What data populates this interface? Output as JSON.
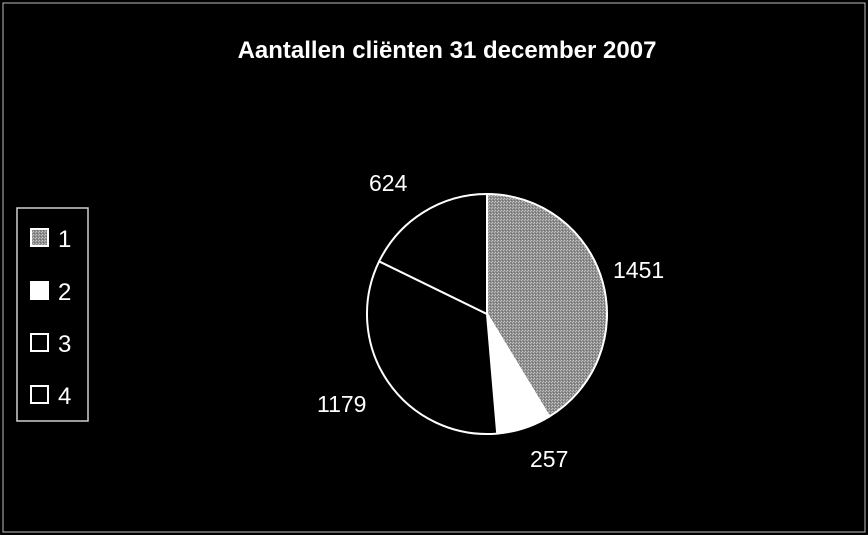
{
  "chart_data": {
    "type": "pie",
    "title": "Aantallen cliënten 31 december 2007",
    "categories": [
      "1",
      "2",
      "3",
      "4"
    ],
    "values": [
      1451,
      257,
      1179,
      624
    ],
    "data_labels": [
      "1451",
      "257",
      "1179",
      "624"
    ],
    "colors": {
      "1": "#9a9a9a",
      "2": "#ffffff",
      "3": "#000000",
      "4": "#000000"
    },
    "slice_outline_color": "#ffffff",
    "background_color": "#000000",
    "legend": {
      "position": "left",
      "entries": [
        {
          "label": "1",
          "swatch": "#9a9a9a"
        },
        {
          "label": "2",
          "swatch": "#ffffff"
        },
        {
          "label": "3",
          "swatch": "#000000"
        },
        {
          "label": "4",
          "swatch": "#000000"
        }
      ]
    },
    "start_angle": "12 o'clock",
    "direction": "clockwise"
  }
}
